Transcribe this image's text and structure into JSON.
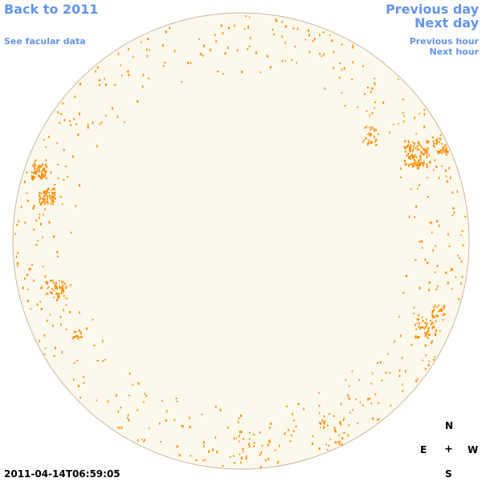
{
  "nav": {
    "back_label": "Back to 2011",
    "previous_day_label": "Previous day",
    "next_day_label": "Next day",
    "facular_label": "See facular data",
    "previous_hour_label": "Previous hour",
    "next_hour_label": "Next hour"
  },
  "compass": {
    "north": "N",
    "south": "S",
    "east": "E",
    "west": "W",
    "center": "+"
  },
  "timestamp": "2011-04-14T06:59:05",
  "colors": {
    "link": "#6495ed",
    "disk_fill": "#fdf8ec",
    "disk_stroke": "#c8b9a0",
    "facula": "#ff8c00"
  }
}
